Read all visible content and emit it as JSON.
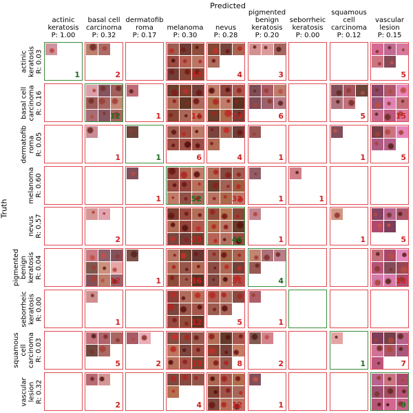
{
  "axes": {
    "x_title": "Predicted",
    "y_title": "Truth"
  },
  "columns": [
    {
      "label": "actinic\nkeratosis\nP: 1.00"
    },
    {
      "label": "basal cell\ncarcinoma\nP: 0.32"
    },
    {
      "label": "dermatofib\nroma\nP: 0.17"
    },
    {
      "label": "melanoma\nP: 0.30"
    },
    {
      "label": "nevus\nP: 0.28"
    },
    {
      "label": "pigmented\nbenign\nkeratosis\nP: 0.20"
    },
    {
      "label": "seborrheic\nkeratosis\nP: 0.00"
    },
    {
      "label": "squamous\ncell\ncarcinoma\nP: 0.12"
    },
    {
      "label": "vascular\nlesion\nP: 0.15"
    }
  ],
  "rows": [
    {
      "label": "actinic\nkeratosis\nR: 0.03"
    },
    {
      "label": "basal cell\ncarcinoma\nR: 0.16"
    },
    {
      "label": "dermatofib\nroma\nR: 0.05"
    },
    {
      "label": "melanoma\nR: 0.60"
    },
    {
      "label": "nevus\nR: 0.57"
    },
    {
      "label": "pigmented\nbenign\nkeratosis\nR: 0.04"
    },
    {
      "label": "seborrheic\nkeratosis\nR: 0.00"
    },
    {
      "label": "squamous\ncell\ncarcinoma\nR: 0.03"
    },
    {
      "label": "vascular\nlesion\nR: 0.32"
    }
  ],
  "chart_data": {
    "type": "heatmap",
    "title": "",
    "xlabel": "Predicted",
    "ylabel": "Truth",
    "categories": [
      "actinic keratosis",
      "basal cell carcinoma",
      "dermatofibroma",
      "melanoma",
      "nevus",
      "pigmented benign keratosis",
      "seborrheic keratosis",
      "squamous cell carcinoma",
      "vascular lesion"
    ],
    "precision": [
      1.0,
      0.32,
      0.17,
      0.3,
      0.28,
      0.2,
      0.0,
      0.12,
      0.15
    ],
    "recall": [
      0.03,
      0.16,
      0.05,
      0.6,
      0.57,
      0.04,
      0.0,
      0.03,
      0.32
    ],
    "matrix": [
      [
        1,
        2,
        0,
        14,
        4,
        3,
        0,
        0,
        5
      ],
      [
        0,
        12,
        1,
        14,
        23,
        6,
        0,
        5,
        15
      ],
      [
        0,
        1,
        1,
        6,
        4,
        1,
        0,
        1,
        5
      ],
      [
        0,
        0,
        1,
        52,
        32,
        1,
        1,
        0,
        0
      ],
      [
        0,
        2,
        0,
        25,
        46,
        1,
        0,
        1,
        5
      ],
      [
        0,
        12,
        1,
        36,
        31,
        4,
        0,
        0,
        13
      ],
      [
        0,
        1,
        0,
        12,
        5,
        1,
        0,
        0,
        0
      ],
      [
        0,
        5,
        2,
        11,
        8,
        2,
        0,
        1,
        7
      ],
      [
        0,
        2,
        0,
        4,
        12,
        1,
        0,
        0,
        9
      ]
    ]
  },
  "colors": {
    "correct_border": "#3b8a3b",
    "error_border": "#e0484f",
    "correct_count": "#1f6b1f",
    "error_count": "#cc1f1f"
  }
}
